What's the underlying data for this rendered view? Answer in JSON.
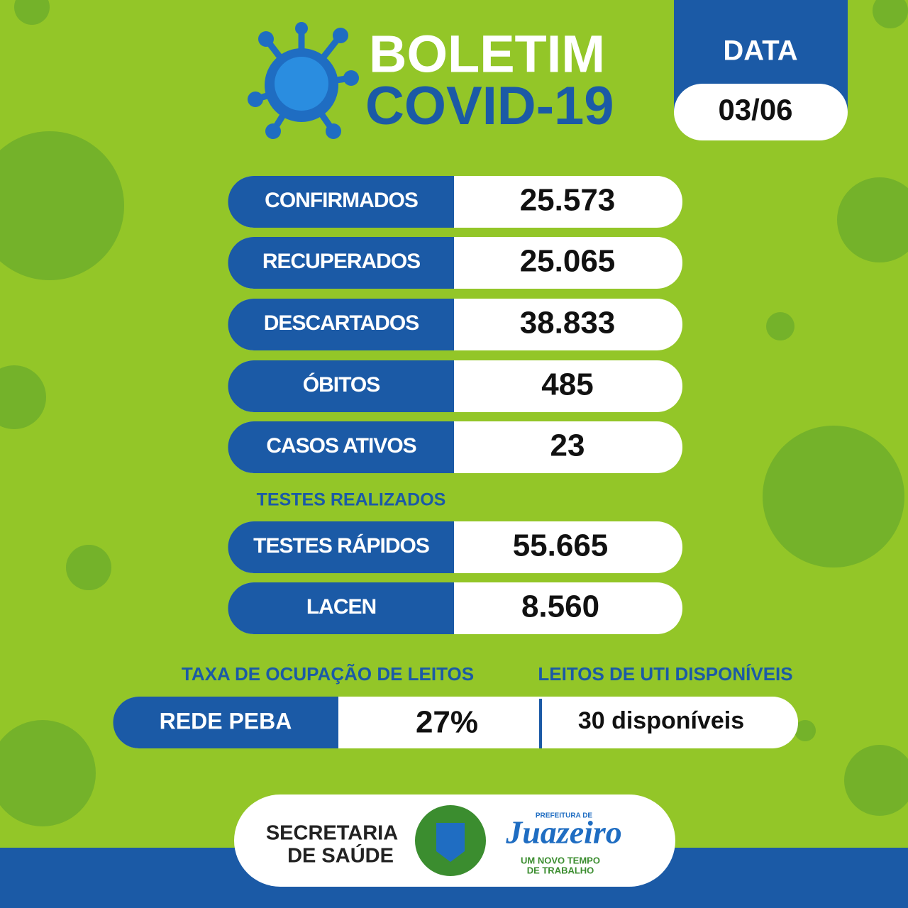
{
  "header": {
    "title_line1": "BOLETIM",
    "title_line2": "COVID-19"
  },
  "date": {
    "label": "DATA",
    "value": "03/06"
  },
  "stats": [
    {
      "label": "CONFIRMADOS",
      "value": "25.573"
    },
    {
      "label": "RECUPERADOS",
      "value": "25.065"
    },
    {
      "label": "DESCARTADOS",
      "value": "38.833"
    },
    {
      "label": "ÓBITOS",
      "value": "485"
    },
    {
      "label": "CASOS ATIVOS",
      "value": "23"
    }
  ],
  "tests": {
    "heading": "TESTES REALIZADOS",
    "rows": [
      {
        "label": "TESTES RÁPIDOS",
        "value": "55.665"
      },
      {
        "label": "LACEN",
        "value": "8.560"
      }
    ]
  },
  "beds": {
    "occupancy_heading": "TAXA DE OCUPAÇÃO DE LEITOS",
    "uti_heading": "LEITOS DE UTI DISPONÍVEIS",
    "network": "REDE PEBA",
    "occupancy": "27%",
    "uti": "30 disponíveis"
  },
  "footer": {
    "secretaria_line1": "SECRETARIA",
    "secretaria_line2": "DE SAÚDE",
    "prefeitura": "PREFEITURA DE",
    "city": "Juazeiro",
    "slogan_line1": "UM NOVO TEMPO",
    "slogan_line2": "DE TRABALHO"
  }
}
